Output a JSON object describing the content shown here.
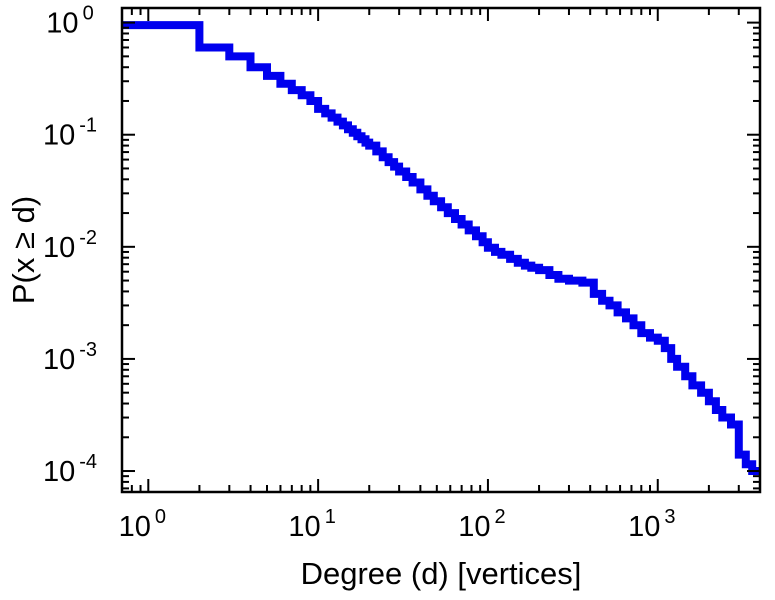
{
  "figure": {
    "background": "#ffffff"
  },
  "chart_data": {
    "type": "line",
    "subtype": "step-ccdf",
    "title": "",
    "xlabel": "Degree (d) [vertices]",
    "ylabel": "P(x ≥ d)",
    "xscale": "log",
    "yscale": "log",
    "grid": false,
    "legend": "none",
    "xlim": [
      0.7,
      4000
    ],
    "ylim": [
      6.5e-05,
      1.35
    ],
    "x_major_ticks": [
      1,
      10,
      100,
      1000
    ],
    "y_major_ticks": [
      1,
      0.1,
      0.01,
      0.001,
      0.0001
    ],
    "x_tick_exponents": [
      0,
      1,
      2,
      3
    ],
    "y_tick_exponents": [
      0,
      -1,
      -2,
      -3,
      -4
    ],
    "line_color": "#0000ee",
    "line_width": 8,
    "axis_color": "#000000",
    "points": [
      [
        1,
        0.95
      ],
      [
        2,
        0.6
      ],
      [
        3,
        0.5
      ],
      [
        4,
        0.4
      ],
      [
        5,
        0.335
      ],
      [
        6,
        0.285
      ],
      [
        7,
        0.25
      ],
      [
        8,
        0.225
      ],
      [
        9,
        0.2
      ],
      [
        10,
        0.17
      ],
      [
        11,
        0.155
      ],
      [
        12,
        0.142
      ],
      [
        13,
        0.131
      ],
      [
        14,
        0.121
      ],
      [
        15,
        0.112
      ],
      [
        16,
        0.104
      ],
      [
        17,
        0.097
      ],
      [
        18,
        0.091
      ],
      [
        19,
        0.085
      ],
      [
        20,
        0.08
      ],
      [
        22,
        0.071
      ],
      [
        24,
        0.063
      ],
      [
        26,
        0.057
      ],
      [
        28,
        0.052
      ],
      [
        30,
        0.047
      ],
      [
        33,
        0.042
      ],
      [
        36,
        0.0375
      ],
      [
        40,
        0.0325
      ],
      [
        44,
        0.0285
      ],
      [
        48,
        0.0255
      ],
      [
        53,
        0.0225
      ],
      [
        58,
        0.02
      ],
      [
        64,
        0.0177
      ],
      [
        70,
        0.0158
      ],
      [
        77,
        0.014
      ],
      [
        85,
        0.0124
      ],
      [
        93,
        0.011
      ],
      [
        100,
        0.0098
      ],
      [
        110,
        0.009
      ],
      [
        120,
        0.0085
      ],
      [
        135,
        0.0078
      ],
      [
        150,
        0.0072
      ],
      [
        165,
        0.0068
      ],
      [
        180,
        0.0065
      ],
      [
        200,
        0.0062
      ],
      [
        230,
        0.0056
      ],
      [
        260,
        0.0052
      ],
      [
        300,
        0.005
      ],
      [
        360,
        0.0048
      ],
      [
        420,
        0.0038
      ],
      [
        470,
        0.0033
      ],
      [
        520,
        0.003
      ],
      [
        580,
        0.0026
      ],
      [
        650,
        0.0023
      ],
      [
        720,
        0.002
      ],
      [
        800,
        0.0017
      ],
      [
        900,
        0.00155
      ],
      [
        1000,
        0.00145
      ],
      [
        1100,
        0.00125
      ],
      [
        1200,
        0.001
      ],
      [
        1300,
        0.00085
      ],
      [
        1450,
        0.0007
      ],
      [
        1600,
        0.00058
      ],
      [
        1800,
        0.0005
      ],
      [
        2000,
        0.00042
      ],
      [
        2200,
        0.00035
      ],
      [
        2400,
        0.0003
      ],
      [
        2700,
        0.00026
      ],
      [
        3000,
        0.00014
      ],
      [
        3300,
        0.000115
      ],
      [
        3600,
        0.0001
      ]
    ]
  }
}
